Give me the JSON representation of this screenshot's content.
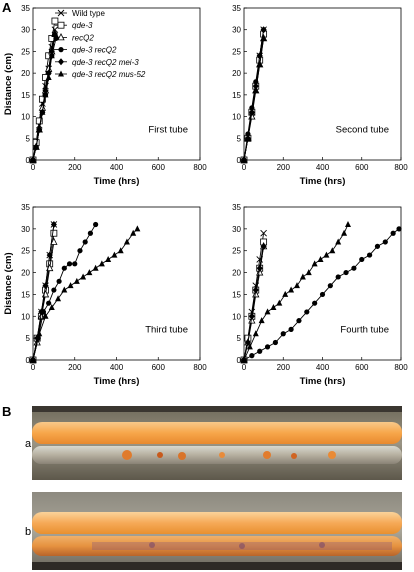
{
  "panels": {
    "a_label": "A",
    "b_label": "B"
  },
  "photos": {
    "a_label": "a",
    "b_label": "b"
  },
  "legend": [
    {
      "name": "Wild type",
      "marker": "x"
    },
    {
      "name": "qde-3",
      "marker": "square"
    },
    {
      "name": "recQ2",
      "marker": "triangle-open"
    },
    {
      "name": "qde-3 recQ2",
      "marker": "circle"
    },
    {
      "name": "qde-3 recQ2  mei-3",
      "marker": "diamond"
    },
    {
      "name": "qde-3 recQ2 mus-52",
      "marker": "triangle"
    }
  ],
  "chart_data": [
    {
      "type": "line",
      "title": "First tube",
      "xlabel": "Time (hrs)",
      "ylabel": "Distance (cm)",
      "xlim": [
        0,
        800
      ],
      "ylim": [
        0,
        35
      ],
      "xticks": [
        0,
        200,
        400,
        600,
        800
      ],
      "yticks": [
        0,
        5,
        10,
        15,
        20,
        25,
        30,
        35
      ],
      "legend": "top-left",
      "series": [
        {
          "name": "Wild type",
          "x": [
            0,
            15,
            30,
            45,
            60,
            75,
            90,
            105
          ],
          "y": [
            0,
            4,
            8,
            13,
            17,
            21,
            26,
            30
          ]
        },
        {
          "name": "qde-3",
          "x": [
            0,
            15,
            30,
            45,
            60,
            75,
            90,
            105
          ],
          "y": [
            0,
            4,
            9,
            14,
            19,
            24,
            28,
            32
          ]
        },
        {
          "name": "recQ2",
          "x": [
            0,
            15,
            30,
            45,
            60,
            75,
            90,
            105
          ],
          "y": [
            0,
            3,
            7,
            12,
            16,
            21,
            25,
            29
          ]
        },
        {
          "name": "qde-3 recQ2",
          "x": [
            0,
            15,
            30,
            45,
            60,
            75,
            90,
            110
          ],
          "y": [
            0,
            3,
            7,
            11,
            15,
            20,
            24,
            28
          ]
        },
        {
          "name": "qde-3 recQ2  mei-3",
          "x": [
            0,
            15,
            30,
            45,
            60,
            75,
            90,
            105
          ],
          "y": [
            0,
            3,
            7,
            11,
            16,
            20,
            25,
            29
          ]
        },
        {
          "name": "qde-3 recQ2 mus-52",
          "x": [
            0,
            15,
            30,
            45,
            60,
            75,
            90,
            105
          ],
          "y": [
            0,
            3,
            7,
            11,
            15,
            19,
            24,
            29
          ]
        }
      ]
    },
    {
      "type": "line",
      "title": "Second tube",
      "xlabel": "Time (hrs)",
      "ylabel": "",
      "xlim": [
        0,
        800
      ],
      "ylim": [
        0,
        35
      ],
      "xticks": [
        0,
        200,
        400,
        600,
        800
      ],
      "yticks": [
        0,
        5,
        10,
        15,
        20,
        25,
        30,
        35
      ],
      "series": [
        {
          "name": "Wild type",
          "x": [
            0,
            20,
            40,
            60,
            80,
            100
          ],
          "y": [
            0,
            5,
            11,
            17,
            24,
            30
          ]
        },
        {
          "name": "qde-3",
          "x": [
            0,
            20,
            40,
            60,
            80,
            100
          ],
          "y": [
            0,
            5,
            11,
            17,
            23,
            29
          ]
        },
        {
          "name": "recQ2",
          "x": [
            0,
            20,
            40,
            60,
            80,
            100
          ],
          "y": [
            0,
            5,
            10,
            16,
            22,
            28
          ]
        },
        {
          "name": "qde-3 recQ2",
          "x": [
            0,
            20,
            40,
            60,
            80,
            100
          ],
          "y": [
            0,
            6,
            12,
            18,
            24,
            30
          ]
        },
        {
          "name": "qde-3 recQ2  mei-3",
          "x": [
            0,
            20,
            40,
            60,
            80,
            100
          ],
          "y": [
            0,
            5,
            11,
            17,
            24,
            30
          ]
        },
        {
          "name": "qde-3 recQ2 mus-52",
          "x": [
            0,
            20,
            40,
            60,
            80,
            100
          ],
          "y": [
            0,
            5,
            11,
            16,
            22,
            28
          ]
        }
      ]
    },
    {
      "type": "line",
      "title": "Third tube",
      "xlabel": "Time (hrs)",
      "ylabel": "Distance (cm)",
      "xlim": [
        0,
        800
      ],
      "ylim": [
        0,
        35
      ],
      "xticks": [
        0,
        200,
        400,
        600,
        800
      ],
      "yticks": [
        0,
        5,
        10,
        15,
        20,
        25,
        30,
        35
      ],
      "series": [
        {
          "name": "Wild type",
          "x": [
            0,
            20,
            40,
            60,
            80,
            100
          ],
          "y": [
            0,
            5,
            11,
            17,
            24,
            31
          ]
        },
        {
          "name": "qde-3",
          "x": [
            0,
            20,
            40,
            60,
            80,
            100
          ],
          "y": [
            0,
            5,
            10,
            16,
            22,
            29
          ]
        },
        {
          "name": "recQ2",
          "x": [
            0,
            20,
            40,
            60,
            80,
            100
          ],
          "y": [
            0,
            4,
            10,
            15,
            21,
            27
          ]
        },
        {
          "name": "qde-3 recQ2",
          "x": [
            0,
            25,
            50,
            75,
            100,
            125,
            150,
            175,
            200,
            225,
            250,
            275,
            300
          ],
          "y": [
            0,
            5,
            11,
            13,
            16,
            18,
            21,
            22,
            22,
            25,
            27,
            29,
            31
          ]
        },
        {
          "name": "qde-3 recQ2  mei-3",
          "x": [
            0,
            20,
            40,
            60,
            80,
            100
          ],
          "y": [
            0,
            5,
            11,
            17,
            24,
            31
          ]
        },
        {
          "name": "qde-3 recQ2 mus-52",
          "x": [
            0,
            30,
            60,
            90,
            120,
            150,
            180,
            210,
            240,
            270,
            300,
            330,
            360,
            390,
            420,
            450,
            480,
            500
          ],
          "y": [
            0,
            6,
            10,
            12,
            14,
            16,
            17,
            18,
            19,
            20,
            21,
            22,
            23,
            24,
            25,
            27,
            29,
            30
          ]
        }
      ]
    },
    {
      "type": "line",
      "title": "Fourth tube",
      "xlabel": "Time (hrs)",
      "ylabel": "",
      "xlim": [
        0,
        800
      ],
      "ylim": [
        0,
        35
      ],
      "xticks": [
        0,
        200,
        400,
        600,
        800
      ],
      "yticks": [
        0,
        5,
        10,
        15,
        20,
        25,
        30,
        35
      ],
      "series": [
        {
          "name": "Wild type",
          "x": [
            0,
            20,
            40,
            60,
            80,
            100
          ],
          "y": [
            0,
            5,
            11,
            17,
            23,
            29
          ]
        },
        {
          "name": "qde-3",
          "x": [
            0,
            20,
            40,
            60,
            80,
            100
          ],
          "y": [
            0,
            5,
            10,
            16,
            21,
            27
          ]
        },
        {
          "name": "recQ2",
          "x": [
            0,
            20,
            40,
            60,
            80,
            100
          ],
          "y": [
            0,
            4,
            9,
            15,
            20,
            26
          ]
        },
        {
          "name": "qde-3 recQ2",
          "x": [
            0,
            40,
            80,
            120,
            160,
            200,
            240,
            280,
            320,
            360,
            400,
            440,
            480,
            520,
            560,
            600,
            640,
            680,
            720,
            760,
            790
          ],
          "y": [
            0,
            1,
            2,
            3,
            4,
            6,
            7,
            9,
            11,
            13,
            15,
            17,
            19,
            20,
            21,
            23,
            24,
            26,
            27,
            29,
            30
          ]
        },
        {
          "name": "qde-3 recQ2  mei-3",
          "x": [
            0,
            20,
            40,
            60,
            80,
            100
          ],
          "y": [
            0,
            4,
            10,
            16,
            21,
            26
          ]
        },
        {
          "name": "qde-3 recQ2 mus-52",
          "x": [
            0,
            30,
            60,
            90,
            120,
            150,
            180,
            210,
            240,
            270,
            300,
            330,
            360,
            390,
            420,
            450,
            480,
            510,
            530
          ],
          "y": [
            0,
            3,
            6,
            9,
            11,
            12,
            13,
            15,
            16,
            17,
            19,
            20,
            22,
            23,
            24,
            25,
            27,
            29,
            31
          ]
        }
      ]
    }
  ]
}
